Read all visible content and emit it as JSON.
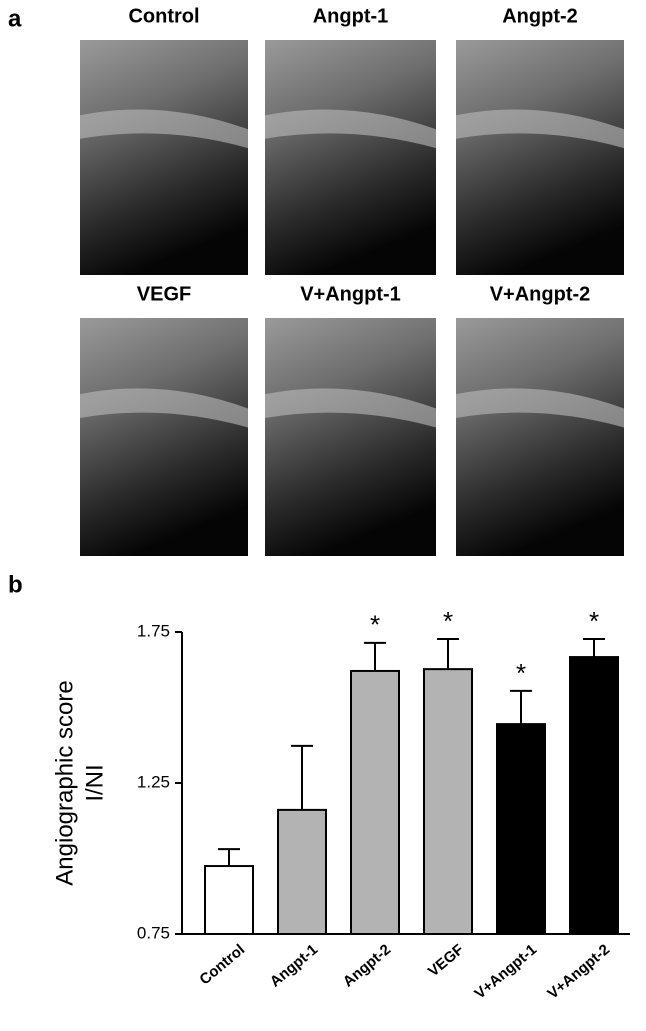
{
  "panel_a": {
    "label": "a",
    "images": [
      "Control",
      "Angpt-1",
      "Angpt-2",
      "VEGF",
      "V+Angpt-1",
      "V+Angpt-2"
    ]
  },
  "chart_data": {
    "type": "bar",
    "panel_label": "b",
    "ylabel": [
      "Angiographic score",
      "I/NI"
    ],
    "categories": [
      "Control",
      "Angpt-1",
      "Angpt-2",
      "VEGF",
      "V+Angpt-1",
      "V+Angpt-2"
    ],
    "values": [
      0.975,
      1.161,
      1.621,
      1.627,
      1.445,
      1.667
    ],
    "errors": [
      0.056,
      0.212,
      0.093,
      0.1,
      0.11,
      0.06
    ],
    "colors": [
      "#ffffff",
      "#b3b3b3",
      "#b3b3b3",
      "#b3b3b3",
      "#000000",
      "#000000"
    ],
    "annotations": [
      null,
      null,
      "*",
      "*",
      "*",
      "*"
    ],
    "ylim": [
      0.75,
      1.75
    ],
    "yticks": [
      0.75,
      1.25,
      1.75
    ]
  }
}
